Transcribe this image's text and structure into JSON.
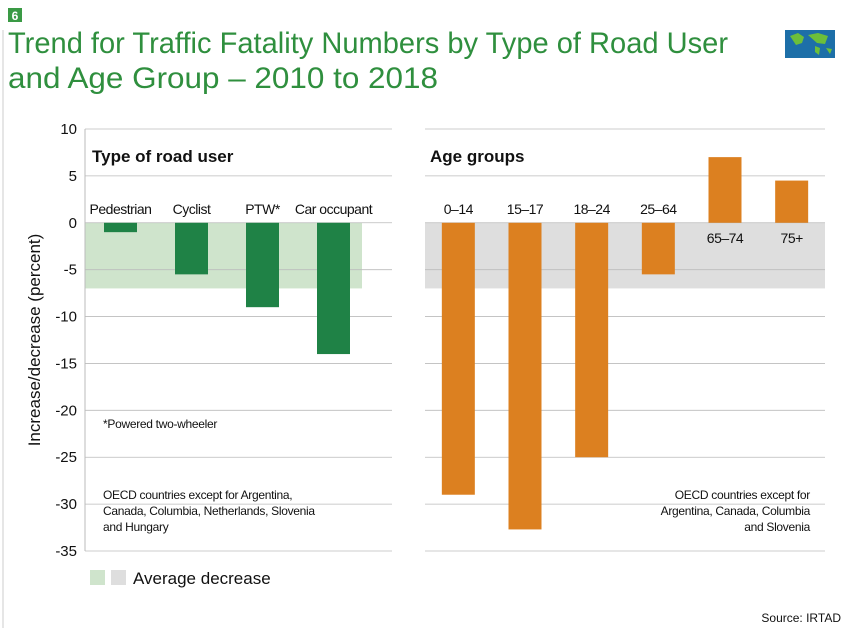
{
  "badge": "6",
  "title_lines": [
    "Trend for Traffic Fatality Numbers by Type of Road User",
    "and Age Group – 2010 to 2018"
  ],
  "legend": "Average decrease",
  "source": "Source: IRTAD",
  "ylabel": "Increase/decrease (percent)",
  "ylim": [
    -35,
    10
  ],
  "yticks": [
    10,
    5,
    0,
    -5,
    -10,
    -15,
    -20,
    -25,
    -30,
    -35
  ],
  "grid": true,
  "chart_data": [
    {
      "type": "bar",
      "subtitle": "Type of road user",
      "categories": [
        "Pedestrian",
        "Cyclist",
        "PTW*",
        "Car occupant"
      ],
      "values": [
        -1,
        -5.5,
        -9,
        -14
      ],
      "color": "#1f8246",
      "average": -7,
      "average_color": "#cfe4cc",
      "notes": [
        "*Powered two-wheeler",
        "OECD countries except for Argentina, Canada, Columbia, Netherlands, Slovenia and Hungary"
      ]
    },
    {
      "type": "bar",
      "subtitle": "Age groups",
      "categories": [
        "0–14",
        "15–17",
        "18–24",
        "25–64",
        "65–74",
        "75+"
      ],
      "values": [
        -29,
        -32.7,
        -25,
        -5.5,
        7,
        4.5
      ],
      "color": "#dc8020",
      "average": -7,
      "average_color": "#dedede",
      "notes": [
        "OECD countries except for Argentina, Canada, Columbia and Slovenia"
      ]
    }
  ]
}
